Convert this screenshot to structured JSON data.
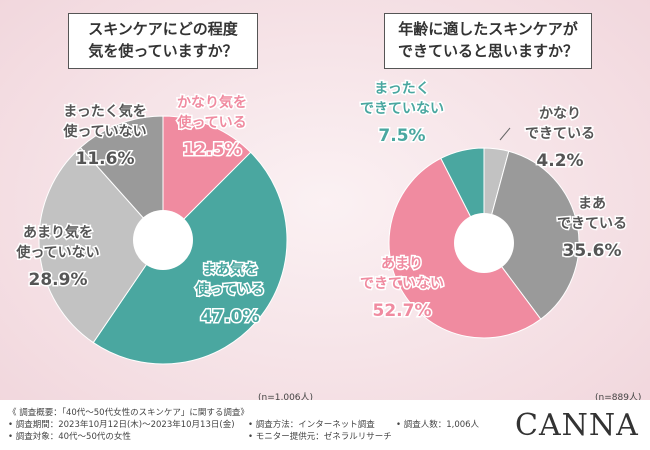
{
  "chart_data": [
    {
      "type": "pie",
      "style": "donut",
      "title": "スキンケアにどの程度 気を使っていますか？",
      "title_lines": [
        "スキンケアにどの程度",
        "気を使っていますか？"
      ],
      "n_label": "(n=1,006人)",
      "slices": [
        {
          "label_lines": [
            "かなり気を",
            "使っている"
          ],
          "value": 12.5,
          "value_text": "12.5%",
          "color": "#f08ba0"
        },
        {
          "label_lines": [
            "まあ気を",
            "使っている"
          ],
          "value": 47.0,
          "value_text": "47.0%",
          "color": "#4aa7a0"
        },
        {
          "label_lines": [
            "あまり気を",
            "使っていない"
          ],
          "value": 28.9,
          "value_text": "28.9%",
          "color": "#c2c2c2"
        },
        {
          "label_lines": [
            "まったく気を",
            "使っていない"
          ],
          "value": 11.6,
          "value_text": "11.6%",
          "color": "#9a9a9a"
        }
      ]
    },
    {
      "type": "pie",
      "style": "donut",
      "title": "年齢に適したスキンケアが できていると思いますか？",
      "title_lines": [
        "年齢に適したスキンケアが",
        "できていると思いますか？"
      ],
      "n_label": "(n=889人)",
      "slices": [
        {
          "label_lines": [
            "かなり",
            "できている"
          ],
          "value": 4.2,
          "value_text": "4.2%",
          "color": "#c2c2c2"
        },
        {
          "label_lines": [
            "まあ",
            "できている"
          ],
          "value": 35.6,
          "value_text": "35.6%",
          "color": "#9a9a9a"
        },
        {
          "label_lines": [
            "あまり",
            "できていない"
          ],
          "value": 52.7,
          "value_text": "52.7%",
          "color": "#f08ba0"
        },
        {
          "label_lines": [
            "まったく",
            "できていない"
          ],
          "value": 7.5,
          "value_text": "7.5%",
          "color": "#4aa7a0"
        }
      ]
    }
  ],
  "footer": {
    "heading": "《 調査概要：「40代～50代女性のスキンケア」に関する調査》",
    "period": "• 調査期間：2023年10月12日(木)～2023年10月13日(金)",
    "target": "• 調査対象：40代～50代の女性",
    "method": "• 調査方法：インターネット調査",
    "provider": "• モニター提供元：ゼネラルリサーチ",
    "count": "• 調査人数：1,006人"
  },
  "brand": "CANNA"
}
